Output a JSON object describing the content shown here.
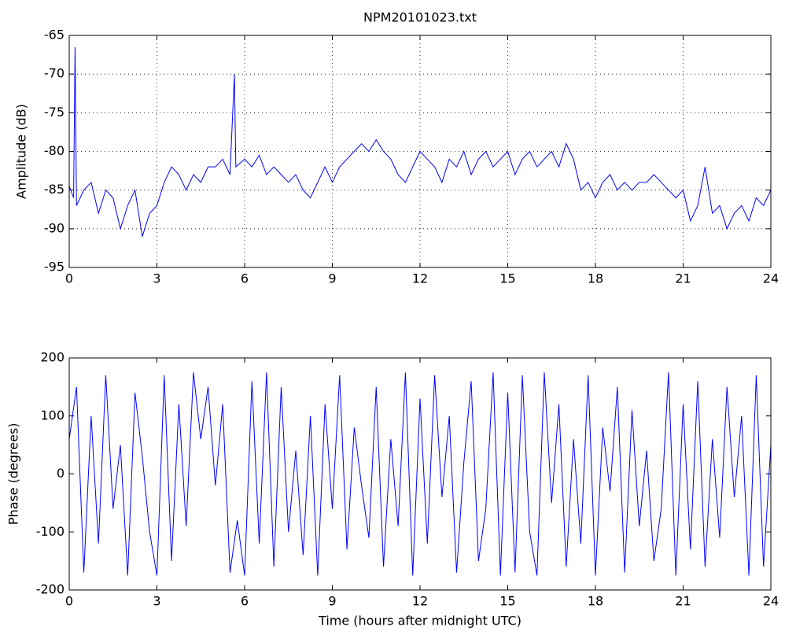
{
  "chart_data": [
    {
      "type": "line",
      "title": "NPM20101023.txt",
      "ylabel": "Amplitude (dB)",
      "xlim": [
        0,
        24
      ],
      "xticks": [
        0,
        3,
        6,
        9,
        12,
        15,
        18,
        21,
        24
      ],
      "ylim": [
        -95,
        -65
      ],
      "yticks": [
        -95,
        -90,
        -85,
        -80,
        -75,
        -70,
        -65
      ],
      "grid": true,
      "x": [
        0,
        0.15,
        0.2,
        0.25,
        0.5,
        0.75,
        1.0,
        1.25,
        1.5,
        1.75,
        2.0,
        2.25,
        2.5,
        2.75,
        3.0,
        3.25,
        3.5,
        3.75,
        4.0,
        4.25,
        4.5,
        4.75,
        5.0,
        5.25,
        5.5,
        5.65,
        5.7,
        6.0,
        6.25,
        6.5,
        6.75,
        7.0,
        7.25,
        7.5,
        7.75,
        8.0,
        8.25,
        8.5,
        8.75,
        9.0,
        9.25,
        9.5,
        9.75,
        10.0,
        10.25,
        10.5,
        10.75,
        11.0,
        11.25,
        11.5,
        11.75,
        12.0,
        12.25,
        12.5,
        12.75,
        13.0,
        13.25,
        13.5,
        13.75,
        14.0,
        14.25,
        14.5,
        14.75,
        15.0,
        15.25,
        15.5,
        15.75,
        16.0,
        16.25,
        16.5,
        16.75,
        17.0,
        17.25,
        17.5,
        17.75,
        18.0,
        18.25,
        18.5,
        18.75,
        19.0,
        19.25,
        19.5,
        19.75,
        20.0,
        20.25,
        20.5,
        20.75,
        21.0,
        21.25,
        21.5,
        21.75,
        22.0,
        22.25,
        22.5,
        22.75,
        23.0,
        23.25,
        23.5,
        23.75,
        24.0
      ],
      "series": [
        {
          "color": "#0000ff",
          "values": [
            -84.5,
            -86,
            -66.5,
            -87,
            -85,
            -84,
            -88,
            -85,
            -86,
            -90,
            -87,
            -85,
            -91,
            -88,
            -87,
            -84,
            -82,
            -83,
            -85,
            -83,
            -84,
            -82,
            -82,
            -81,
            -83,
            -70,
            -82,
            -81,
            -82,
            -80.5,
            -83,
            -82,
            -83,
            -84,
            -83,
            -85,
            -86,
            -84,
            -82,
            -84,
            -82,
            -81,
            -80,
            -79,
            -80,
            -78.5,
            -80,
            -81,
            -83,
            -84,
            -82,
            -80,
            -81,
            -82,
            -84,
            -81,
            -82,
            -80,
            -83,
            -81,
            -80,
            -82,
            -81,
            -80,
            -83,
            -81,
            -80,
            -82,
            -81,
            -80,
            -82,
            -79,
            -81,
            -85,
            -84,
            -86,
            -84,
            -83,
            -85,
            -84,
            -85,
            -84,
            -84,
            -83,
            -84,
            -85,
            -86,
            -85,
            -89,
            -87,
            -82,
            -88,
            -87,
            -90,
            -88,
            -87,
            -89,
            -86,
            -87,
            -85
          ]
        }
      ]
    },
    {
      "type": "line",
      "ylabel": "Phase (degrees)",
      "xlabel": "Time (hours after midnight UTC)",
      "xlim": [
        0,
        24
      ],
      "xticks": [
        0,
        3,
        6,
        9,
        12,
        15,
        18,
        21,
        24
      ],
      "ylim": [
        -200,
        200
      ],
      "yticks": [
        -200,
        -100,
        0,
        100,
        200
      ],
      "grid": false,
      "x": [
        0,
        0.25,
        0.5,
        0.75,
        1,
        1.25,
        1.5,
        1.75,
        2,
        2.25,
        2.5,
        2.75,
        3,
        3.25,
        3.5,
        3.75,
        4,
        4.25,
        4.5,
        4.75,
        5,
        5.25,
        5.5,
        5.75,
        6,
        6.25,
        6.5,
        6.75,
        7,
        7.25,
        7.5,
        7.75,
        8,
        8.25,
        8.5,
        8.75,
        9,
        9.25,
        9.5,
        9.75,
        10,
        10.25,
        10.5,
        10.75,
        11,
        11.25,
        11.5,
        11.75,
        12,
        12.25,
        12.5,
        12.75,
        13,
        13.25,
        13.5,
        13.75,
        14,
        14.25,
        14.5,
        14.75,
        15,
        15.25,
        15.5,
        15.75,
        16,
        16.25,
        16.5,
        16.75,
        17,
        17.25,
        17.5,
        17.75,
        18,
        18.25,
        18.5,
        18.75,
        19,
        19.25,
        19.5,
        19.75,
        20,
        20.25,
        20.5,
        20.75,
        21,
        21.25,
        21.5,
        21.75,
        22,
        22.25,
        22.5,
        22.75,
        23,
        23.25,
        23.5,
        23.75,
        24
      ],
      "series": [
        {
          "color": "#0000ff",
          "values": [
            60,
            150,
            -170,
            100,
            -120,
            170,
            -60,
            50,
            -175,
            140,
            30,
            -100,
            -175,
            170,
            -150,
            120,
            -90,
            175,
            60,
            150,
            -20,
            120,
            -170,
            -80,
            -175,
            160,
            -120,
            175,
            -160,
            150,
            -100,
            40,
            -140,
            100,
            -175,
            120,
            -60,
            170,
            -130,
            80,
            -20,
            -110,
            150,
            -160,
            60,
            -90,
            175,
            -175,
            130,
            -120,
            170,
            -40,
            100,
            -170,
            20,
            160,
            -150,
            -60,
            175,
            -175,
            140,
            -170,
            170,
            -100,
            -175,
            175,
            -50,
            120,
            -160,
            60,
            -120,
            170,
            -175,
            80,
            -30,
            150,
            -170,
            110,
            -90,
            40,
            -150,
            -60,
            175,
            -175,
            120,
            -130,
            160,
            -160,
            60,
            -110,
            150,
            -40,
            100,
            -175,
            170,
            -160,
            50
          ]
        }
      ]
    }
  ]
}
